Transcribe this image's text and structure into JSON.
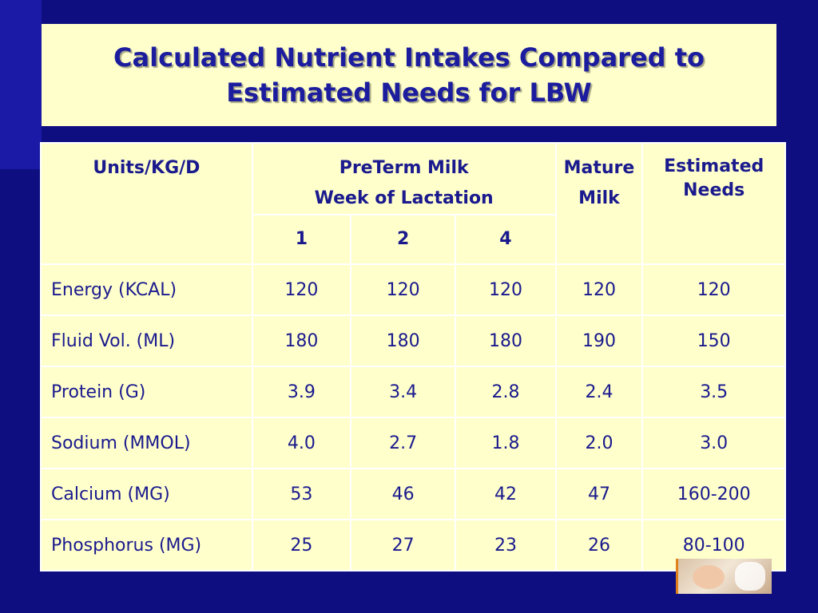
{
  "slide": {
    "title": "Calculated Nutrient Intakes Compared to\nEstimated Needs for LBW",
    "colors": {
      "background": "#0e0e80",
      "panel": "#ffffcc",
      "text": "#1a1a8e"
    }
  },
  "table": {
    "header": {
      "units": "Units/KG/D",
      "preterm_line1": "PreTerm Milk",
      "preterm_line2": "Week of Lactation",
      "mature_line1": "Mature",
      "mature_line2": "Milk",
      "needs_line1": "Estimated",
      "needs_line2": "Needs",
      "weeks": [
        "1",
        "2",
        "4"
      ]
    },
    "rows": [
      {
        "label": "Energy (KCAL)",
        "w1": "120",
        "w2": "120",
        "w4": "120",
        "mature": "120",
        "needs": "120"
      },
      {
        "label": "Fluid Vol. (ML)",
        "w1": "180",
        "w2": "180",
        "w4": "180",
        "mature": "190",
        "needs": "150"
      },
      {
        "label": "Protein (G)",
        "w1": "3.9",
        "w2": "3.4",
        "w4": "2.8",
        "mature": "2.4",
        "needs": "3.5"
      },
      {
        "label": "Sodium (MMOL)",
        "w1": "4.0",
        "w2": "2.7",
        "w4": "1.8",
        "mature": "2.0",
        "needs": "3.0"
      },
      {
        "label": "Calcium (MG)",
        "w1": "53",
        "w2": "46",
        "w4": "42",
        "mature": "47",
        "needs": "160-200"
      },
      {
        "label": "Phosphorus (MG)",
        "w1": "25",
        "w2": "27",
        "w4": "23",
        "mature": "26",
        "needs": "80-100"
      }
    ]
  }
}
